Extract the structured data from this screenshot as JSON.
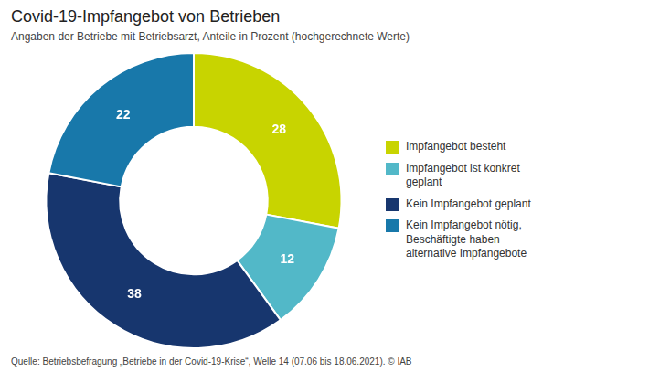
{
  "chart_data": {
    "type": "doughnut",
    "title": "Covid-19-Impfangebot von Betrieben",
    "subtitle": "Angaben der Betriebe mit Betriebsarzt, Anteile in Prozent (hochgerechnete Werte)",
    "source": "Quelle: Betriebsbefragung „Betriebe in der Covid-19-Krise“, Welle 14 (07.06 bis 18.06.2021). © IAB",
    "categories": [
      "Impfangebot besteht",
      "Impfangebot ist konkret\ngeplant",
      "Kein Impfangebot geplant",
      "Kein Impfangebot nötig,\nBeschäftigte haben\nalternative Impfangebote"
    ],
    "values": [
      28,
      12,
      38,
      22
    ],
    "colors": [
      "#c8d400",
      "#52b8c8",
      "#17366e",
      "#1878aa"
    ],
    "data_labels": true,
    "legend": "right"
  }
}
